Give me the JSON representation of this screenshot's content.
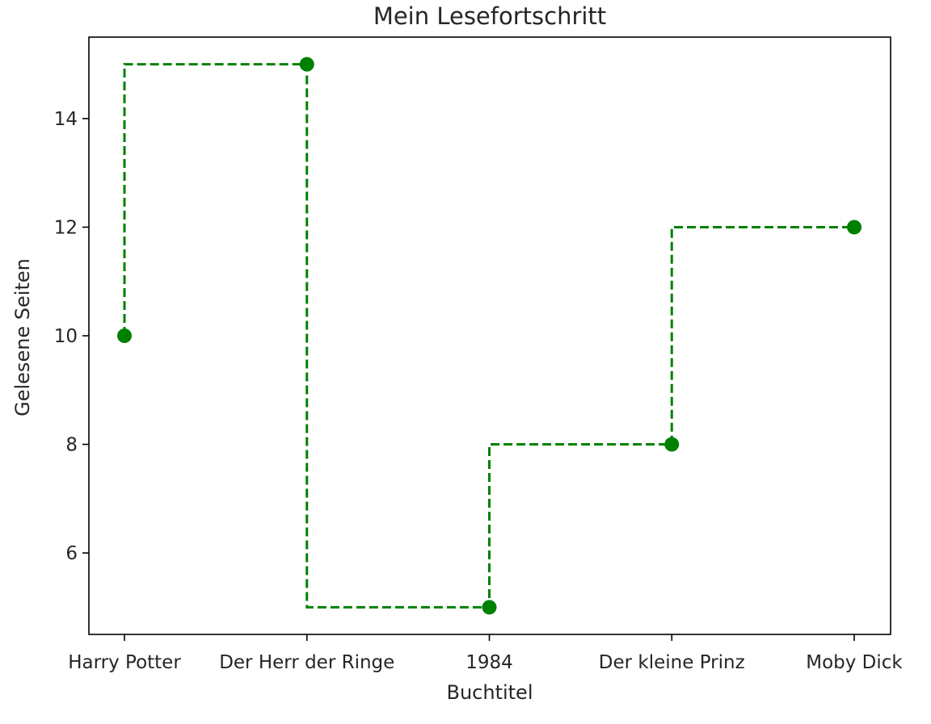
{
  "chart_data": {
    "type": "line",
    "step": "pre",
    "title": "Mein Lesefortschritt",
    "xlabel": "Buchtitel",
    "ylabel": "Gelesene Seiten",
    "categories": [
      "Harry Potter",
      "Der Herr der Ringe",
      "1984",
      "Der kleine Prinz",
      "Moby Dick"
    ],
    "series": [
      {
        "name": "Gelesene Seiten",
        "values": [
          10,
          15,
          5,
          8,
          12
        ],
        "color": "#008000",
        "line_style": "dashed",
        "marker": "circle"
      }
    ],
    "ylim": [
      4.5,
      15.5
    ],
    "yticks": [
      6,
      8,
      10,
      12,
      14
    ],
    "grid": false
  }
}
